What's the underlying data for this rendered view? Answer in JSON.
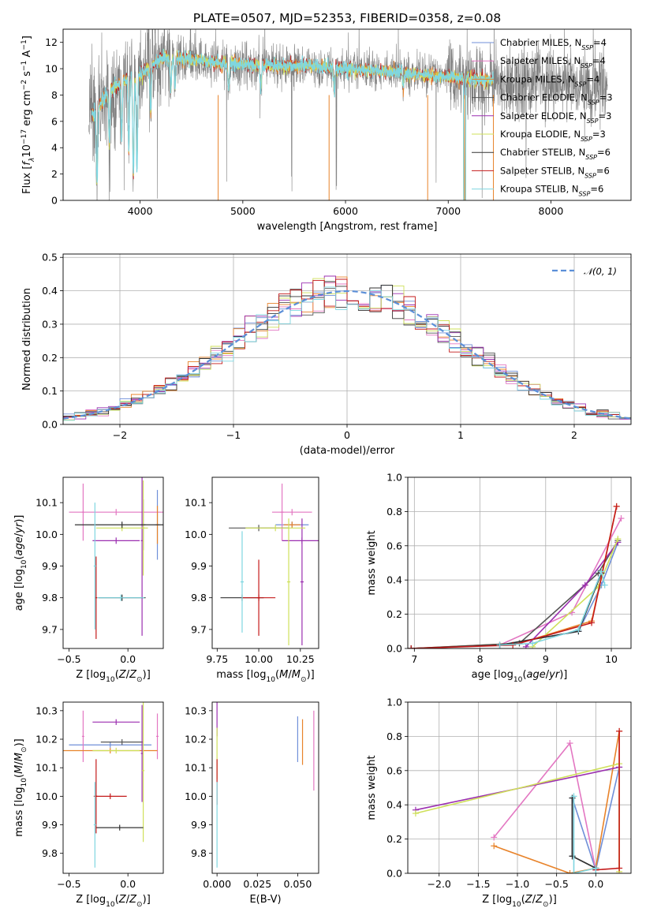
{
  "figure": {
    "title": "PLATE=0507, MJD=52353, FIBERID=0358, z=0.08"
  },
  "models": [
    {
      "name": "Chabrier MILES",
      "n_ssp": 4,
      "color": "#6f8fd8"
    },
    {
      "name": "Salpeter MILES",
      "n_ssp": 4,
      "color": "#e377c2"
    },
    {
      "name": "Kroupa MILES",
      "n_ssp": 4,
      "color": "#e8832a"
    },
    {
      "name": "Chabrier ELODIE",
      "n_ssp": 3,
      "color": "#555555"
    },
    {
      "name": "Salpeter ELODIE",
      "n_ssp": 3,
      "color": "#9b2fb0"
    },
    {
      "name": "Kroupa ELODIE",
      "n_ssp": 3,
      "color": "#cfe05a"
    },
    {
      "name": "Chabrier STELIB",
      "n_ssp": 6,
      "color": "#333333"
    },
    {
      "name": "Salpeter STELIB",
      "n_ssp": 6,
      "color": "#c41a1a"
    },
    {
      "name": "Kroupa STELIB",
      "n_ssp": 6,
      "color": "#7fd6e0"
    }
  ],
  "chart_data": [
    {
      "id": "spectrum",
      "type": "line",
      "xlabel": "wavelength [Angstrom, rest frame]",
      "ylabel": "Flux [f_λ 10^-17 erg cm^-2 s^-1 A^-1]",
      "xlim": [
        3250,
        8780
      ],
      "ylim": [
        0,
        13
      ],
      "xticks": [
        4000,
        5000,
        6000,
        7000,
        8000
      ],
      "yticks": [
        0,
        2,
        4,
        6,
        8,
        10,
        12
      ],
      "legend_placement": "top-right",
      "legend_entries": [
        "Chabrier MILES, N_SSP=4",
        "Salpeter MILES, N_SSP=4",
        "Kroupa MILES, N_SSP=4",
        "Chabrier ELODIE, N_SSP=3",
        "Salpeter ELODIE, N_SSP=3",
        "Kroupa ELODIE, N_SSP=3",
        "Chabrier STELIB, N_SSP=6",
        "Salpeter STELIB, N_SSP=6",
        "Kroupa STELIB, N_SSP=6"
      ],
      "data_color": "#808080",
      "model_color": "#7fd6e0",
      "data_range": [
        3500,
        8550
      ],
      "model_range": [
        3530,
        7440
      ],
      "continuum": [
        [
          3500,
          6.0
        ],
        [
          3600,
          7.2
        ],
        [
          3700,
          8.3
        ],
        [
          3850,
          9.2
        ],
        [
          4000,
          9.5
        ],
        [
          4100,
          10.2
        ],
        [
          4200,
          10.8
        ],
        [
          4400,
          10.8
        ],
        [
          4600,
          10.6
        ],
        [
          4800,
          10.4
        ],
        [
          5000,
          10.3
        ],
        [
          5300,
          10.2
        ],
        [
          5600,
          10.2
        ],
        [
          6000,
          10.0
        ],
        [
          6400,
          9.8
        ],
        [
          6800,
          9.5
        ],
        [
          7100,
          9.3
        ],
        [
          7400,
          9.1
        ],
        [
          7800,
          8.9
        ],
        [
          8200,
          8.8
        ],
        [
          8550,
          8.7
        ]
      ],
      "absorption_features": [
        {
          "wavelength": 3580,
          "depth": 5.8
        },
        {
          "wavelength": 3700,
          "depth": 4.0
        },
        {
          "wavelength": 3820,
          "depth": 4.5
        },
        {
          "wavelength": 3890,
          "depth": 5.5
        },
        {
          "wavelength": 3934,
          "depth": 7.5
        },
        {
          "wavelength": 3969,
          "depth": 7.2
        },
        {
          "wavelength": 4102,
          "depth": 3.5
        },
        {
          "wavelength": 4300,
          "depth": 2.5
        },
        {
          "wavelength": 4340,
          "depth": 2.2
        },
        {
          "wavelength": 4861,
          "depth": 2.0
        },
        {
          "wavelength": 5175,
          "depth": 1.8
        },
        {
          "wavelength": 5890,
          "depth": 1.8
        },
        {
          "wavelength": 6563,
          "depth": 1.2
        }
      ],
      "chip_gaps": [
        4760,
        5840,
        6800,
        7160,
        7440
      ]
    },
    {
      "id": "residuals",
      "type": "line",
      "xlabel": "(data-model)/error",
      "ylabel": "Normed distribution",
      "xlim": [
        -2.5,
        2.5
      ],
      "ylim": [
        0,
        0.51
      ],
      "xticks": [
        -2,
        -1,
        0,
        1,
        2
      ],
      "yticks": [
        0.0,
        0.1,
        0.2,
        0.3,
        0.4,
        0.5
      ],
      "grid": true,
      "legend_placement": "top-right",
      "bin_width": 0.1,
      "reference_curve": {
        "label": "𝒩(0, 1)",
        "mean": 0,
        "sigma": 1,
        "color": "#5b8fd8"
      }
    },
    {
      "id": "age-vs-metallicity",
      "type": "scatter",
      "xlabel": "Z [log10(Z/Z⊙)]",
      "ylabel": "age  [log10(age/yr)]",
      "xlim": [
        -0.55,
        0.3
      ],
      "ylim": [
        9.64,
        10.18
      ],
      "xticks": [
        -0.5,
        0.0
      ],
      "yticks": [
        9.7,
        9.8,
        9.9,
        10.0,
        10.1
      ],
      "points": [
        {
          "model": "Chabrier MILES",
          "x": 0.25,
          "y": 10.03,
          "xerr": 0.02,
          "yerr": 0.11
        },
        {
          "model": "Salpeter MILES",
          "x": -0.1,
          "y": 10.07,
          "xerr": 0.4,
          "yerr": 0.01
        },
        {
          "model": "Salpeter MILES",
          "x": -0.38,
          "y": 10.07,
          "xerr": 0.01,
          "yerr": 0.09
        },
        {
          "model": "Kroupa MILES",
          "x": 0.25,
          "y": 10.03,
          "xerr": 0.01,
          "yerr": 0.06
        },
        {
          "model": "Chabrier ELODIE",
          "x": 0.13,
          "y": 10.03,
          "xerr": 0.02,
          "yerr": 0.08
        },
        {
          "model": "Salpeter ELODIE",
          "x": -0.1,
          "y": 9.98,
          "xerr": 0.2,
          "yerr": 0.01
        },
        {
          "model": "Salpeter ELODIE",
          "x": 0.12,
          "y": 9.98,
          "xerr": 0.01,
          "yerr": 0.3
        },
        {
          "model": "Kroupa ELODIE",
          "x": -0.05,
          "y": 10.02,
          "xerr": 0.22,
          "yerr": 0.01
        },
        {
          "model": "Kroupa ELODIE",
          "x": 0.13,
          "y": 10.02,
          "xerr": 0.01,
          "yerr": 0.15
        },
        {
          "model": "Chabrier STELIB",
          "x": -0.05,
          "y": 9.8,
          "xerr": 0.2,
          "yerr": 0.01
        },
        {
          "model": "Salpeter STELIB",
          "x": -0.27,
          "y": 9.8,
          "xerr": 0.01,
          "yerr": 0.13
        },
        {
          "model": "Chabrier STELIB",
          "x": -0.05,
          "y": 10.03,
          "xerr": 0.4,
          "yerr": 0.01
        },
        {
          "model": "Kroupa STELIB",
          "x": -0.06,
          "y": 9.8,
          "xerr": 0.2,
          "yerr": 0.01
        },
        {
          "model": "Kroupa STELIB",
          "x": -0.28,
          "y": 9.9,
          "xerr": 0.01,
          "yerr": 0.2
        }
      ]
    },
    {
      "id": "age-vs-mass",
      "type": "scatter",
      "xlabel": "mass [log10(M/M⊙)]",
      "ylabel": "",
      "xlim": [
        9.72,
        10.36
      ],
      "ylim": [
        9.64,
        10.18
      ],
      "xticks": [
        9.75,
        10.0,
        10.25
      ],
      "yticks": [
        9.7,
        9.8,
        9.9,
        10.0,
        10.1
      ],
      "points": [
        {
          "model": "Chabrier MILES",
          "x": 10.2,
          "y": 10.03,
          "xerr": 0.1,
          "yerr": 0.01
        },
        {
          "model": "Salpeter MILES",
          "x": 10.2,
          "y": 10.07,
          "xerr": 0.12,
          "yerr": 0.01
        },
        {
          "model": "Salpeter MILES",
          "x": 10.14,
          "y": 10.07,
          "xerr": 0.01,
          "yerr": 0.09
        },
        {
          "model": "Kroupa MILES",
          "x": 10.2,
          "y": 10.03,
          "xerr": 0.05,
          "yerr": 0.01
        },
        {
          "model": "Chabrier ELODIE",
          "x": 10.0,
          "y": 10.02,
          "xerr": 0.18,
          "yerr": 0.01
        },
        {
          "model": "Salpeter ELODIE",
          "x": 10.26,
          "y": 9.98,
          "xerr": 0.12,
          "yerr": 0.01
        },
        {
          "model": "Salpeter ELODIE",
          "x": 10.26,
          "y": 9.85,
          "xerr": 0.01,
          "yerr": 0.2
        },
        {
          "model": "Kroupa ELODIE",
          "x": 10.18,
          "y": 9.85,
          "xerr": 0.01,
          "yerr": 0.2
        },
        {
          "model": "Kroupa ELODIE",
          "x": 10.1,
          "y": 10.02,
          "xerr": 0.18,
          "yerr": 0.01
        },
        {
          "model": "Chabrier STELIB",
          "x": 9.9,
          "y": 9.8,
          "xerr": 0.13,
          "yerr": 0.01
        },
        {
          "model": "Salpeter STELIB",
          "x": 10.0,
          "y": 9.8,
          "xerr": 0.01,
          "yerr": 0.12
        },
        {
          "model": "Salpeter STELIB",
          "x": 10.0,
          "y": 9.8,
          "xerr": 0.1,
          "yerr": 0.01
        },
        {
          "model": "Kroupa STELIB",
          "x": 9.9,
          "y": 9.85,
          "xerr": 0.01,
          "yerr": 0.16
        }
      ]
    },
    {
      "id": "mass-weight-vs-age",
      "type": "line",
      "xlabel": "age  [log10(age/yr)]",
      "ylabel": "mass weight",
      "xlim": [
        6.9,
        10.3
      ],
      "ylim": [
        0,
        1
      ],
      "xticks": [
        7,
        8,
        9,
        10
      ],
      "yticks": [
        0.0,
        0.2,
        0.4,
        0.6,
        0.8,
        1.0
      ],
      "grid": true,
      "series": [
        {
          "model": "Chabrier MILES",
          "x": [
            6.95,
            8.3,
            9.5,
            9.85,
            10.1
          ],
          "y": [
            0.0,
            0.02,
            0.1,
            0.37,
            0.62
          ]
        },
        {
          "model": "Salpeter MILES",
          "x": [
            8.3,
            9.4,
            10.15
          ],
          "y": [
            0.02,
            0.21,
            0.76
          ]
        },
        {
          "model": "Kroupa MILES",
          "x": [
            6.95,
            8.6,
            9.7,
            10.08
          ],
          "y": [
            0.0,
            0.03,
            0.16,
            0.83
          ]
        },
        {
          "model": "Chabrier ELODIE",
          "x": [
            6.95,
            8.6,
            9.8,
            10.1
          ],
          "y": [
            0.0,
            0.03,
            0.44,
            0.63
          ]
        },
        {
          "model": "Salpeter ELODIE",
          "x": [
            8.7,
            9.6,
            10.1
          ],
          "y": [
            0.01,
            0.37,
            0.62
          ]
        },
        {
          "model": "Kroupa ELODIE",
          "x": [
            8.8,
            9.8,
            10.1
          ],
          "y": [
            0.01,
            0.36,
            0.64
          ]
        },
        {
          "model": "Chabrier STELIB",
          "x": [
            6.95,
            8.3,
            9.5,
            9.85
          ],
          "y": [
            0.0,
            0.02,
            0.1,
            0.44
          ]
        },
        {
          "model": "Salpeter STELIB",
          "x": [
            6.95,
            8.5,
            9.7,
            10.08
          ],
          "y": [
            0.0,
            0.02,
            0.15,
            0.83
          ]
        },
        {
          "model": "Kroupa STELIB",
          "x": [
            8.3,
            8.8,
            9.5,
            9.85,
            9.9
          ],
          "y": [
            0.02,
            0.03,
            0.11,
            0.45,
            0.37
          ]
        }
      ]
    },
    {
      "id": "mass-vs-metallicity",
      "type": "scatter",
      "xlabel": "Z [log10(Z/Z⊙)]",
      "ylabel": "mass [log10(M/M⊙)]",
      "xlim": [
        -0.55,
        0.3
      ],
      "ylim": [
        9.73,
        10.33
      ],
      "xticks": [
        -0.5,
        0.0
      ],
      "yticks": [
        9.8,
        9.9,
        10.0,
        10.1,
        10.2,
        10.3
      ],
      "points": [
        {
          "model": "Chabrier MILES",
          "x": -0.15,
          "y": 10.18,
          "xerr": 0.35,
          "yerr": 0.01
        },
        {
          "model": "Salpeter MILES",
          "x": 0.25,
          "y": 10.21,
          "xerr": 0.01,
          "yerr": 0.08
        },
        {
          "model": "Salpeter MILES",
          "x": -0.38,
          "y": 10.21,
          "xerr": 0.01,
          "yerr": 0.09
        },
        {
          "model": "Kroupa MILES",
          "x": -0.15,
          "y": 10.16,
          "xerr": 0.4,
          "yerr": 0.01
        },
        {
          "model": "Chabrier ELODIE",
          "x": -0.05,
          "y": 10.19,
          "xerr": 0.18,
          "yerr": 0.01
        },
        {
          "model": "Salpeter ELODIE",
          "x": -0.1,
          "y": 10.26,
          "xerr": 0.2,
          "yerr": 0.01
        },
        {
          "model": "Salpeter ELODIE",
          "x": 0.12,
          "y": 10.15,
          "xerr": 0.01,
          "yerr": 0.17
        },
        {
          "model": "Kroupa ELODIE",
          "x": 0.13,
          "y": 10.09,
          "xerr": 0.01,
          "yerr": 0.25
        },
        {
          "model": "Kroupa ELODIE",
          "x": -0.1,
          "y": 10.16,
          "xerr": 0.2,
          "yerr": 0.01
        },
        {
          "model": "Chabrier STELIB",
          "x": -0.07,
          "y": 9.89,
          "xerr": 0.2,
          "yerr": 0.01
        },
        {
          "model": "Salpeter STELIB",
          "x": -0.27,
          "y": 10.0,
          "xerr": 0.01,
          "yerr": 0.13
        },
        {
          "model": "Salpeter STELIB",
          "x": -0.15,
          "y": 10.0,
          "xerr": 0.14,
          "yerr": 0.01
        },
        {
          "model": "Kroupa STELIB",
          "x": -0.28,
          "y": 9.9,
          "xerr": 0.01,
          "yerr": 0.15
        }
      ]
    },
    {
      "id": "mass-vs-extinction",
      "type": "scatter",
      "xlabel": "E(B-V)",
      "ylabel": "",
      "xlim": [
        -0.003,
        0.063
      ],
      "ylim": [
        9.73,
        10.33
      ],
      "xticks": [
        0.0,
        0.025,
        0.05
      ],
      "yticks": [
        9.8,
        9.9,
        10.0,
        10.1,
        10.2,
        10.3
      ],
      "points": [
        {
          "model": "Chabrier MILES",
          "x": 0.05,
          "y": 10.2,
          "xerr": 0.0,
          "yerr": 0.08
        },
        {
          "model": "Salpeter MILES",
          "x": 0.06,
          "y": 10.16,
          "xerr": 0.0,
          "yerr": 0.14
        },
        {
          "model": "Kroupa MILES",
          "x": 0.053,
          "y": 10.19,
          "xerr": 0.0,
          "yerr": 0.08
        },
        {
          "model": "Salpeter ELODIE",
          "x": 0.0,
          "y": 10.27,
          "xerr": 0.0,
          "yerr": 0.06
        },
        {
          "model": "Kroupa ELODIE",
          "x": 0.0,
          "y": 10.15,
          "xerr": 0.0,
          "yerr": 0.09
        },
        {
          "model": "Salpeter STELIB",
          "x": 0.0,
          "y": 10.05,
          "xerr": 0.0,
          "yerr": 0.08
        },
        {
          "model": "Kroupa STELIB",
          "x": 0.0,
          "y": 9.9,
          "xerr": 0.0,
          "yerr": 0.15
        }
      ]
    },
    {
      "id": "mass-weight-vs-metallicity",
      "type": "line",
      "xlabel": "Z [log10(Z/Z⊙)]",
      "ylabel": "mass weight",
      "xlim": [
        -2.4,
        0.45
      ],
      "ylim": [
        0,
        1
      ],
      "xticks": [
        -2.0,
        -1.5,
        -1.0,
        -0.5,
        0.0
      ],
      "yticks": [
        0.0,
        0.2,
        0.4,
        0.6,
        0.8,
        1.0
      ],
      "grid": true,
      "series": [
        {
          "model": "Chabrier MILES",
          "x": [
            -0.3,
            -0.3,
            0.0,
            0.3
          ],
          "y": [
            0.1,
            0.44,
            0.02,
            0.62
          ]
        },
        {
          "model": "Salpeter MILES",
          "x": [
            -1.3,
            -0.33,
            0.0
          ],
          "y": [
            0.21,
            0.76,
            0.02
          ]
        },
        {
          "model": "Kroupa MILES",
          "x": [
            -1.3,
            -0.33,
            0.0,
            0.3,
            0.3
          ],
          "y": [
            0.16,
            0.0,
            0.03,
            0.83,
            0.0
          ]
        },
        {
          "model": "Chabrier ELODIE",
          "x": [
            -0.3,
            -0.3,
            0.0
          ],
          "y": [
            0.44,
            0.1,
            0.03
          ]
        },
        {
          "model": "Salpeter ELODIE",
          "x": [
            -2.3,
            0.3
          ],
          "y": [
            0.37,
            0.62
          ]
        },
        {
          "model": "Kroupa ELODIE",
          "x": [
            -2.3,
            0.3,
            0.3
          ],
          "y": [
            0.35,
            0.64,
            0.01
          ]
        },
        {
          "model": "Chabrier STELIB",
          "x": [
            -0.3,
            -0.3,
            0.0
          ],
          "y": [
            0.44,
            0.1,
            0.03
          ]
        },
        {
          "model": "Salpeter STELIB",
          "x": [
            0.3,
            0.3,
            0.0
          ],
          "y": [
            0.83,
            0.03,
            0.02
          ]
        },
        {
          "model": "Kroupa STELIB",
          "x": [
            -0.28,
            -0.28,
            0.0,
            0.0
          ],
          "y": [
            0.45,
            0.0,
            0.03,
            0.0
          ]
        }
      ]
    }
  ]
}
